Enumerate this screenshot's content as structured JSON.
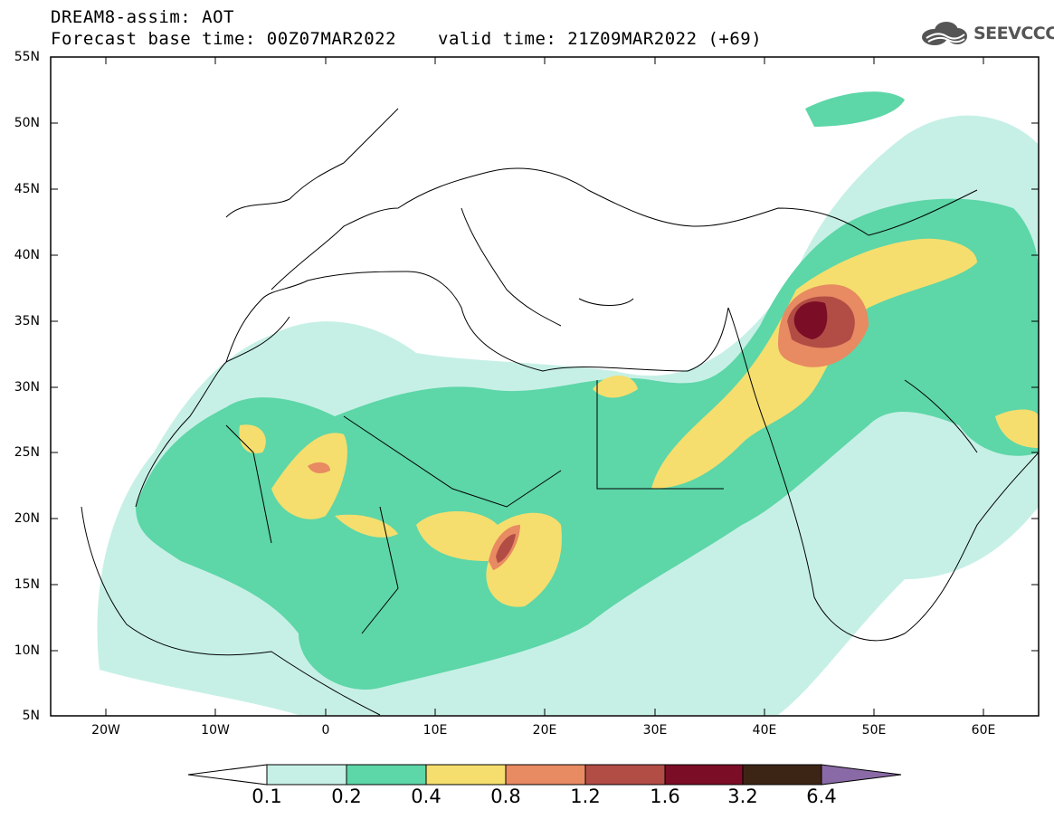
{
  "header": {
    "title": "DREAM8-assim: AOT",
    "base_time": "Forecast base time: 00Z07MAR2022",
    "valid_time": "valid time: 21Z09MAR2022 (+69)"
  },
  "logo": {
    "text": "SEEVCCC",
    "icon": "cloud-icon"
  },
  "map": {
    "lat_labels": [
      "55N",
      "50N",
      "45N",
      "40N",
      "35N",
      "30N",
      "25N",
      "20N",
      "15N",
      "10N",
      "5N"
    ],
    "lon_labels": [
      "20W",
      "10W",
      "0",
      "10E",
      "20E",
      "30E",
      "40E",
      "50E",
      "60E"
    ],
    "lat_range": [
      5,
      55
    ],
    "lon_range": [
      -25,
      65
    ]
  },
  "colorbar": {
    "labels": [
      "0.1",
      "0.2",
      "0.4",
      "0.8",
      "1.2",
      "1.6",
      "3.2",
      "6.4"
    ],
    "colors": [
      "#c6f0e6",
      "#5dd6a8",
      "#f5de6e",
      "#e88a62",
      "#b24d45",
      "#7c0d26",
      "#3d2516",
      "#8a6aa6"
    ]
  }
}
